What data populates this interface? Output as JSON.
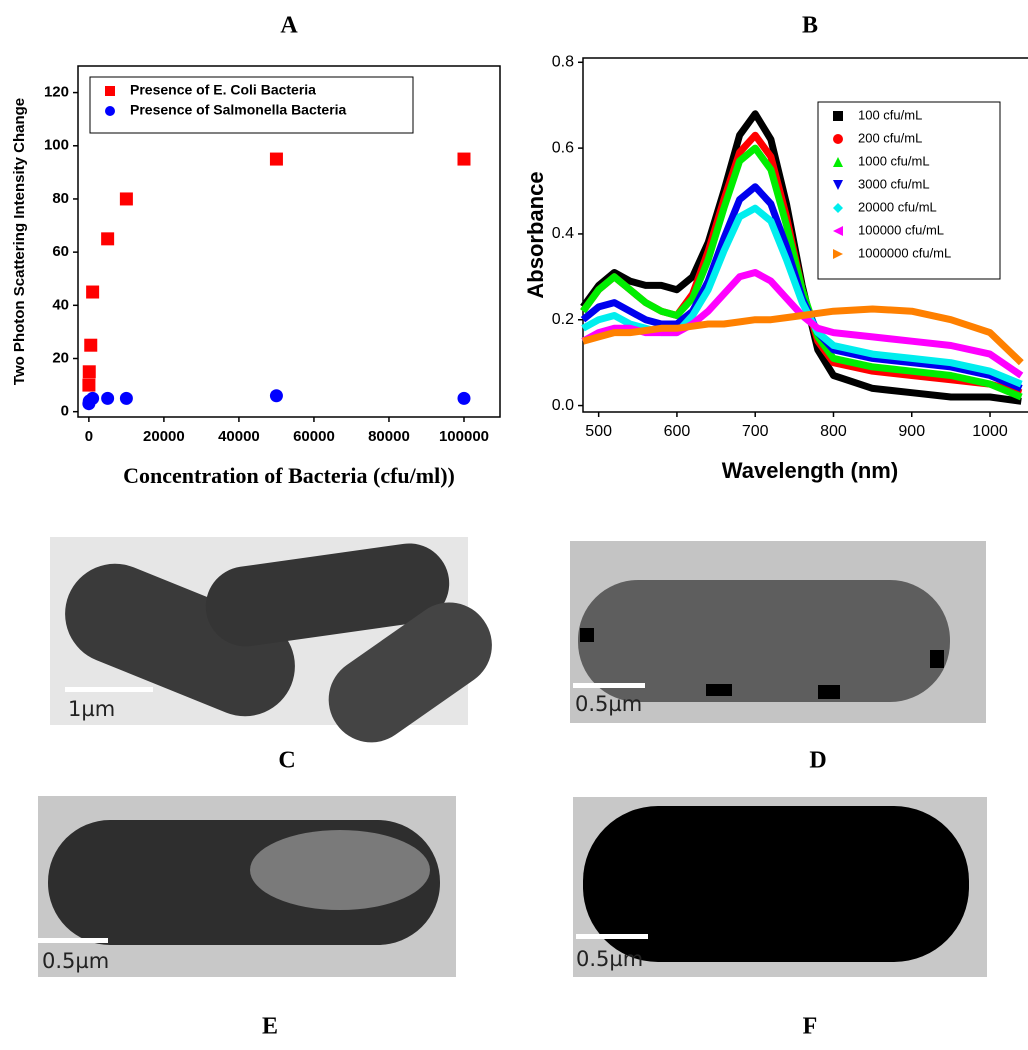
{
  "chart_data": [
    {
      "type": "scatter",
      "title": "A",
      "xlabel": "Concentration of Bacteria (cfu/ml))",
      "ylabel": "Two Photon Scattering Intensity Change",
      "xlim": [
        -2900,
        109600
      ],
      "xticks": [
        0,
        20000,
        40000,
        60000,
        80000,
        100000
      ],
      "ylim": [
        -2,
        130
      ],
      "yticks": [
        0,
        20,
        40,
        60,
        80,
        100,
        120
      ],
      "legend": "upper left",
      "series": [
        {
          "name": "Presence of E. Coli Bacteria",
          "color": "#ff0000",
          "marker": "square",
          "x": [
            10,
            100,
            500,
            1000,
            5000,
            10000,
            50000,
            100000
          ],
          "values": [
            10,
            15,
            25,
            45,
            65,
            80,
            95,
            95
          ]
        },
        {
          "name": "Presence of Salmonella Bacteria",
          "color": "#0000ff",
          "marker": "circle",
          "x": [
            0,
            100,
            1000,
            5000,
            10000,
            50000,
            100000
          ],
          "values": [
            3,
            4,
            5,
            5,
            5,
            6,
            5
          ]
        }
      ]
    },
    {
      "type": "line",
      "title": "B",
      "xlabel": "Wavelength (nm)",
      "ylabel": "Absorbance",
      "xlim": [
        480,
        1060
      ],
      "xticks": [
        500,
        600,
        700,
        800,
        900,
        1000
      ],
      "ylim": [
        -0.015,
        0.81
      ],
      "yticks": [
        {
          "value": 0,
          "label": "0.0"
        },
        0.2,
        0.4,
        0.6,
        0.8
      ],
      "legend": "upper right",
      "x": [
        480,
        500,
        520,
        540,
        560,
        580,
        600,
        620,
        640,
        660,
        680,
        700,
        720,
        740,
        760,
        780,
        800,
        850,
        900,
        950,
        1000,
        1040
      ],
      "series": [
        {
          "name": "100 cfu/mL",
          "color": "#000000",
          "marker": "square",
          "values": [
            0.23,
            0.28,
            0.31,
            0.29,
            0.28,
            0.28,
            0.27,
            0.3,
            0.38,
            0.5,
            0.63,
            0.68,
            0.62,
            0.47,
            0.28,
            0.13,
            0.07,
            0.04,
            0.03,
            0.02,
            0.02,
            0.01
          ]
        },
        {
          "name": "200 cfu/mL",
          "color": "#ff0000",
          "marker": "circle",
          "values": [
            0.22,
            0.27,
            0.3,
            0.27,
            0.24,
            0.22,
            0.21,
            0.26,
            0.36,
            0.48,
            0.59,
            0.63,
            0.58,
            0.44,
            0.27,
            0.15,
            0.1,
            0.08,
            0.07,
            0.06,
            0.05,
            0.03
          ]
        },
        {
          "name": "1000 cfu/mL",
          "color": "#00ee00",
          "marker": "triangle-up",
          "values": [
            0.22,
            0.27,
            0.3,
            0.27,
            0.24,
            0.22,
            0.21,
            0.25,
            0.34,
            0.46,
            0.57,
            0.6,
            0.55,
            0.42,
            0.27,
            0.16,
            0.11,
            0.09,
            0.08,
            0.07,
            0.05,
            0.02
          ]
        },
        {
          "name": "3000 cfu/mL",
          "color": "#0000ee",
          "marker": "triangle-down",
          "values": [
            0.2,
            0.23,
            0.24,
            0.22,
            0.2,
            0.19,
            0.19,
            0.22,
            0.29,
            0.39,
            0.48,
            0.51,
            0.47,
            0.37,
            0.25,
            0.17,
            0.13,
            0.11,
            0.1,
            0.09,
            0.07,
            0.04
          ]
        },
        {
          "name": "20000 cfu/mL",
          "color": "#00eeee",
          "marker": "diamond",
          "values": [
            0.18,
            0.2,
            0.21,
            0.19,
            0.18,
            0.17,
            0.17,
            0.21,
            0.27,
            0.36,
            0.44,
            0.46,
            0.43,
            0.34,
            0.24,
            0.17,
            0.14,
            0.12,
            0.11,
            0.1,
            0.08,
            0.05
          ]
        },
        {
          "name": "100000 cfu/mL",
          "color": "#ff00ff",
          "marker": "triangle-left",
          "values": [
            0.15,
            0.17,
            0.18,
            0.18,
            0.17,
            0.17,
            0.17,
            0.19,
            0.22,
            0.26,
            0.3,
            0.31,
            0.29,
            0.25,
            0.21,
            0.18,
            0.17,
            0.16,
            0.15,
            0.14,
            0.12,
            0.07
          ]
        },
        {
          "name": "1000000 cfu/mL",
          "color": "#ff8000",
          "marker": "triangle-right",
          "values": [
            0.15,
            0.16,
            0.17,
            0.17,
            0.175,
            0.18,
            0.18,
            0.185,
            0.19,
            0.19,
            0.195,
            0.2,
            0.2,
            0.205,
            0.21,
            0.215,
            0.22,
            0.225,
            0.22,
            0.2,
            0.17,
            0.1
          ]
        }
      ]
    }
  ],
  "micrographs": [
    {
      "letter": "C",
      "scale": "1µm"
    },
    {
      "letter": "D",
      "scale": "0.5µm"
    },
    {
      "letter": "E",
      "scale": "0.5µm"
    },
    {
      "letter": "F",
      "scale": "0.5µm"
    }
  ]
}
